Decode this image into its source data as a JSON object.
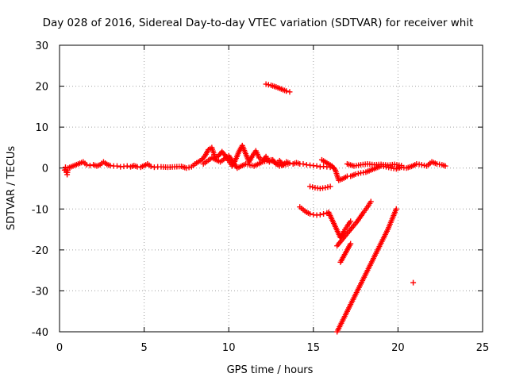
{
  "chart_data": {
    "type": "scatter",
    "title": "Day 028 of 2016, Sidereal Day-to-day VTEC variation (SDTVAR) for receiver whit",
    "xlabel": "GPS time / hours",
    "ylabel": "SDTVAR / TECUs",
    "xlim": [
      0,
      25
    ],
    "ylim": [
      -40,
      30
    ],
    "xticks": [
      0,
      5,
      10,
      15,
      20,
      25
    ],
    "yticks": [
      -40,
      -30,
      -20,
      -10,
      0,
      10,
      20,
      30
    ],
    "xtick_labels": [
      "0",
      "5",
      "10",
      "15",
      "20",
      "25"
    ],
    "ytick_labels": [
      "-40",
      "-30",
      "-20",
      "-10",
      "0",
      "10",
      "20",
      "30"
    ],
    "grid": true,
    "marker": "plus",
    "marker_color": "#ff0000",
    "series": [
      {
        "points": [
          [
            0.3,
            -0.5
          ],
          [
            0.35,
            0.2
          ],
          [
            0.4,
            -1.0
          ],
          [
            0.45,
            -1.6
          ],
          [
            0.5,
            0.0
          ],
          [
            1.4,
            1.5
          ],
          [
            1.6,
            0.8
          ],
          [
            1.8,
            0.6
          ],
          [
            2.0,
            0.8
          ],
          [
            2.2,
            0.5
          ],
          [
            2.4,
            0.8
          ],
          [
            2.6,
            1.5
          ],
          [
            2.8,
            0.9
          ],
          [
            3.0,
            0.6
          ],
          [
            3.2,
            0.5
          ],
          [
            3.4,
            0.5
          ],
          [
            3.6,
            0.3
          ],
          [
            3.8,
            0.4
          ],
          [
            4.0,
            0.5
          ],
          [
            4.2,
            0.3
          ],
          [
            4.4,
            0.6
          ],
          [
            4.6,
            0.3
          ],
          [
            4.8,
            0.2
          ],
          [
            5.0,
            0.6
          ],
          [
            5.2,
            1.0
          ],
          [
            5.4,
            0.4
          ],
          [
            5.6,
            0.2
          ],
          [
            5.8,
            0.3
          ],
          [
            6.0,
            0.3
          ],
          [
            6.4,
            0.2
          ],
          [
            6.8,
            0.3
          ],
          [
            7.2,
            0.4
          ],
          [
            7.5,
            0.0
          ],
          [
            7.8,
            0.3
          ],
          [
            8.0,
            1.0
          ],
          [
            8.2,
            1.5
          ],
          [
            8.4,
            2.0
          ],
          [
            8.6,
            3.0
          ],
          [
            8.8,
            4.5
          ],
          [
            9.0,
            5.0
          ],
          [
            9.2,
            2.5
          ],
          [
            9.4,
            3.0
          ],
          [
            9.6,
            4.0
          ],
          [
            9.8,
            3.0
          ],
          [
            10.0,
            1.8
          ],
          [
            10.2,
            0.5
          ],
          [
            10.4,
            2.0
          ],
          [
            10.6,
            4.0
          ],
          [
            10.8,
            5.5
          ],
          [
            11.0,
            3.5
          ],
          [
            11.2,
            1.5
          ],
          [
            11.4,
            3.0
          ],
          [
            11.6,
            4.2
          ],
          [
            11.8,
            2.5
          ],
          [
            12.0,
            1.8
          ],
          [
            12.2,
            2.8
          ],
          [
            12.4,
            1.5
          ],
          [
            12.6,
            2.0
          ],
          [
            12.8,
            1.0
          ],
          [
            13.0,
            1.8
          ],
          [
            13.2,
            0.8
          ],
          [
            13.4,
            1.5
          ],
          [
            13.6,
            1.2
          ],
          [
            13.8,
            1.0
          ],
          [
            14.0,
            1.3
          ],
          [
            14.2,
            1.0
          ],
          [
            14.4,
            1.0
          ],
          [
            14.6,
            0.8
          ],
          [
            14.8,
            0.7
          ],
          [
            15.0,
            0.6
          ],
          [
            15.2,
            0.5
          ],
          [
            15.4,
            0.3
          ],
          [
            15.6,
            0.4
          ],
          [
            15.8,
            0.3
          ],
          [
            16.0,
            0.2
          ],
          [
            16.2,
            0.0
          ],
          [
            8.5,
            1.0
          ],
          [
            9.0,
            2.5
          ],
          [
            9.5,
            1.5
          ],
          [
            10.0,
            3.0
          ],
          [
            10.5,
            0.0
          ],
          [
            11.0,
            1.0
          ],
          [
            11.5,
            0.5
          ],
          [
            12.0,
            1.5
          ],
          [
            12.5,
            2.0
          ],
          [
            13.0,
            0.5
          ],
          [
            13.5,
            1.0
          ],
          [
            15.5,
            2.0
          ],
          [
            15.7,
            1.5
          ],
          [
            15.9,
            1.0
          ],
          [
            16.1,
            0.5
          ],
          [
            16.3,
            -0.5
          ],
          [
            16.5,
            -3.0
          ],
          [
            16.8,
            -2.5
          ],
          [
            17.0,
            -2.0
          ],
          [
            17.2,
            -2.0
          ],
          [
            17.5,
            -1.5
          ],
          [
            17.8,
            -1.2
          ],
          [
            18.1,
            -1.0
          ],
          [
            18.4,
            -0.5
          ],
          [
            18.7,
            0.0
          ],
          [
            19.0,
            0.5
          ],
          [
            19.3,
            0.3
          ],
          [
            19.6,
            0.0
          ],
          [
            19.9,
            -0.2
          ],
          [
            20.2,
            0.2
          ],
          [
            20.5,
            0.0
          ],
          [
            20.8,
            0.4
          ],
          [
            21.1,
            1.0
          ],
          [
            21.4,
            0.8
          ],
          [
            21.7,
            0.5
          ],
          [
            22.0,
            1.5
          ],
          [
            22.3,
            1.0
          ],
          [
            22.6,
            0.8
          ],
          [
            22.8,
            0.5
          ],
          [
            17.0,
            1.0
          ],
          [
            17.4,
            0.5
          ],
          [
            17.8,
            0.8
          ],
          [
            18.2,
            1.0
          ],
          [
            18.6,
            0.8
          ],
          [
            19.0,
            0.9
          ],
          [
            19.4,
            0.7
          ],
          [
            19.8,
            0.9
          ],
          [
            20.2,
            0.6
          ],
          [
            14.8,
            -4.5
          ],
          [
            15.1,
            -4.8
          ],
          [
            15.4,
            -5.0
          ],
          [
            15.7,
            -4.8
          ],
          [
            16.0,
            -4.5
          ],
          [
            14.2,
            -9.5
          ],
          [
            14.4,
            -10.2
          ],
          [
            14.6,
            -10.8
          ],
          [
            14.8,
            -11.2
          ],
          [
            15.0,
            -11.4
          ],
          [
            15.2,
            -11.5
          ],
          [
            15.4,
            -11.4
          ],
          [
            15.6,
            -11.2
          ],
          [
            15.8,
            -11.0
          ],
          [
            15.9,
            -10.8
          ],
          [
            16.6,
            -17.0
          ],
          [
            16.8,
            -15.5
          ],
          [
            17.0,
            -14.2
          ],
          [
            17.2,
            -13.0
          ],
          [
            16.4,
            -19.0
          ],
          [
            16.7,
            -17.5
          ],
          [
            17.0,
            -16.0
          ],
          [
            17.3,
            -14.5
          ],
          [
            17.6,
            -13.0
          ],
          [
            17.9,
            -11.2
          ],
          [
            18.2,
            -9.5
          ],
          [
            18.4,
            -8.2
          ],
          [
            16.6,
            -23.0
          ],
          [
            16.8,
            -21.5
          ],
          [
            17.0,
            -20.0
          ],
          [
            17.2,
            -18.5
          ],
          [
            16.4,
            -40.0
          ],
          [
            16.7,
            -37.5
          ],
          [
            17.0,
            -35.0
          ],
          [
            17.3,
            -32.5
          ],
          [
            17.6,
            -30.0
          ],
          [
            17.9,
            -27.5
          ],
          [
            18.2,
            -25.0
          ],
          [
            18.5,
            -22.5
          ],
          [
            18.8,
            -20.0
          ],
          [
            19.1,
            -17.5
          ],
          [
            19.4,
            -15.0
          ],
          [
            19.7,
            -12.0
          ],
          [
            19.9,
            -10.0
          ],
          [
            12.2,
            20.5
          ],
          [
            12.5,
            20.2
          ],
          [
            12.8,
            19.8
          ],
          [
            13.1,
            19.3
          ],
          [
            13.4,
            18.8
          ],
          [
            13.6,
            18.6
          ],
          [
            20.9,
            -28.0
          ]
        ]
      }
    ]
  }
}
